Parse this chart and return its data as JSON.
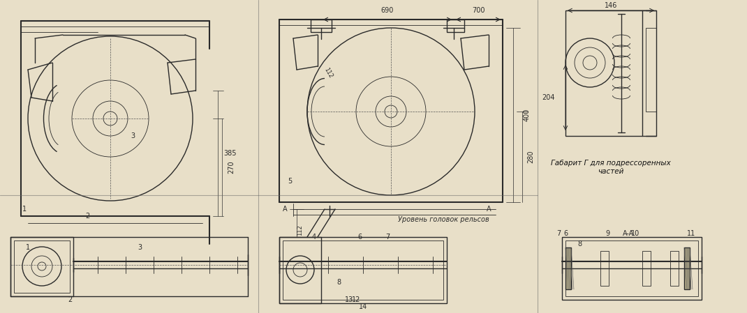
{
  "background_color": "#e8dfc8",
  "paper_color": "#ddd5b8",
  "line_color": "#2a2a2a",
  "line_color_light": "#555555",
  "title": "",
  "fig_width": 10.7,
  "fig_height": 4.49,
  "dpi": 100,
  "annotations": {
    "dim_690": "690",
    "dim_700": "700",
    "dim_385": "385",
    "dim_270": "270",
    "dim_112": "112",
    "dim_400": "400",
    "dim_280": "280",
    "dim_146": "146",
    "dim_204": "204",
    "label_1": "1",
    "label_2": "2",
    "label_3": "3",
    "label_4": "4",
    "label_5": "5",
    "label_6": "6",
    "label_7": "7",
    "label_8": "8",
    "label_9": "9",
    "label_10": "10",
    "label_11": "11",
    "label_12": "12",
    "label_13": "13",
    "label_14": "14",
    "label_A": "A",
    "label_AA": "A-A",
    "text_rail": "Уровень головок рельсов",
    "text_gabarit": "Габарит Г для подрессоренных\nчастей"
  }
}
